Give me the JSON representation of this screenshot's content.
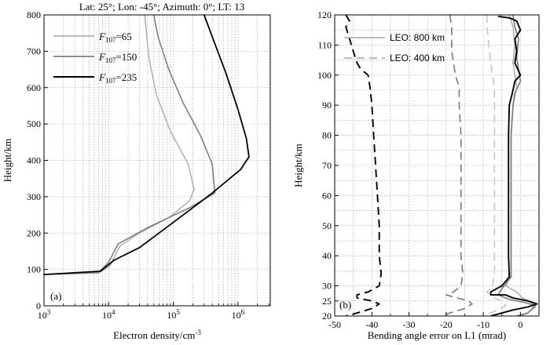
{
  "chart_data": [
    {
      "type": "line",
      "panel": "(a)",
      "title": "Lat: 25°; Lon: -45°; Azimuth: 0°; LT: 13",
      "xlabel": "Electron density/cm",
      "xlabel_sup": "-3",
      "ylabel": "Height/km",
      "xscale": "log",
      "xlim_exp": [
        3,
        6.5
      ],
      "x_tick_bases": [
        "10",
        "10",
        "10",
        "10"
      ],
      "x_tick_exps": [
        "3",
        "4",
        "5",
        "6"
      ],
      "ylim": [
        0,
        800
      ],
      "y_ticks": [
        "0",
        "100",
        "200",
        "300",
        "400",
        "500",
        "600",
        "700",
        "800"
      ],
      "grid": true,
      "legend_position": "top-left",
      "series": [
        {
          "name_main": "F",
          "name_sub": "107",
          "name_value": "=65",
          "color": "#b3b3b3",
          "points": [
            [
              1000,
              86
            ],
            [
              7000,
              90
            ],
            [
              10500,
              110
            ],
            [
              15000,
              165
            ],
            [
              30000,
              200
            ],
            [
              90000,
              245
            ],
            [
              180000,
              290
            ],
            [
              210000,
              320
            ],
            [
              170000,
              390
            ],
            [
              90000,
              480
            ],
            [
              55000,
              580
            ],
            [
              42000,
              680
            ],
            [
              36000,
              800
            ]
          ]
        },
        {
          "name_main": "F",
          "name_sub": "107",
          "name_value": "=150",
          "color": "#7f7f7f",
          "points": [
            [
              1000,
              86
            ],
            [
              7000,
              92
            ],
            [
              10000,
              120
            ],
            [
              14000,
              170
            ],
            [
              40000,
              215
            ],
            [
              180000,
              270
            ],
            [
              440000,
              310
            ],
            [
              400000,
              390
            ],
            [
              260000,
              470
            ],
            [
              140000,
              560
            ],
            [
              85000,
              650
            ],
            [
              58000,
              740
            ],
            [
              50000,
              800
            ]
          ]
        },
        {
          "name_main": "F",
          "name_sub": "107",
          "name_value": "=235",
          "color": "#000000",
          "points": [
            [
              1000,
              86
            ],
            [
              7500,
              95
            ],
            [
              12000,
              125
            ],
            [
              30000,
              160
            ],
            [
              120000,
              240
            ],
            [
              400000,
              310
            ],
            [
              1100000,
              375
            ],
            [
              1480000,
              410
            ],
            [
              1350000,
              460
            ],
            [
              1000000,
              540
            ],
            [
              650000,
              640
            ],
            [
              400000,
              740
            ],
            [
              300000,
              800
            ]
          ]
        }
      ]
    },
    {
      "type": "line",
      "panel": "(b)",
      "xlabel": "Bending angle error on L1 (mrad)",
      "ylabel": "Height/km",
      "xlim": [
        -50,
        5
      ],
      "x_ticks": [
        "-50",
        "-40",
        "-30",
        "-20",
        "-10",
        "0"
      ],
      "ylim": [
        20,
        120
      ],
      "y_ticks": [
        "20",
        "25",
        "30",
        "40",
        "50",
        "60",
        "70",
        "80",
        "90",
        "100",
        "110",
        "120"
      ],
      "y_tick_values": [
        20,
        25,
        30,
        40,
        50,
        60,
        70,
        80,
        90,
        100,
        110,
        120
      ],
      "grid": true,
      "legend_position": "top-right",
      "legend": [
        "LEO: 800 km",
        "LEO: 400 km"
      ],
      "series": [
        {
          "name": "LEO: 800 km, F107=65",
          "style": "solid",
          "color": "#b3b3b3",
          "points": [
            [
              -3,
              120
            ],
            [
              -2,
              116
            ],
            [
              -1.5,
              110
            ],
            [
              -2,
              104
            ],
            [
              -1.5,
              100
            ],
            [
              -1,
              96
            ],
            [
              -2,
              90
            ],
            [
              -2.5,
              80
            ],
            [
              -2.5,
              70
            ],
            [
              -2.5,
              60
            ],
            [
              -2.5,
              50
            ],
            [
              -2.5,
              40
            ],
            [
              -2.5,
              34
            ],
            [
              -4,
              30
            ],
            [
              -1,
              28
            ],
            [
              0.5,
              26
            ],
            [
              3,
              24.5
            ],
            [
              4,
              23
            ],
            [
              2,
              21
            ],
            [
              0,
              20
            ]
          ]
        },
        {
          "name": "LEO: 800 km, F107=150",
          "style": "solid",
          "color": "#7f7f7f",
          "points": [
            [
              -2,
              120
            ],
            [
              -1.5,
              116
            ],
            [
              -0.5,
              112
            ],
            [
              -1,
              106
            ],
            [
              -0.5,
              102
            ],
            [
              0,
              98
            ],
            [
              -1.5,
              94
            ],
            [
              -2,
              90
            ],
            [
              -2.5,
              80
            ],
            [
              -2.5,
              70
            ],
            [
              -2.5,
              60
            ],
            [
              -2.5,
              50
            ],
            [
              -2.5,
              40
            ],
            [
              -2.5,
              33
            ],
            [
              -5,
              29
            ],
            [
              -6,
              27
            ],
            [
              -3,
              25.5
            ],
            [
              1,
              24.5
            ],
            [
              4,
              23.5
            ],
            [
              2,
              21
            ],
            [
              -1,
              20
            ]
          ]
        },
        {
          "name": "LEO: 800 km, F107=235",
          "style": "solid",
          "color": "#000000",
          "points": [
            [
              -6,
              119.5
            ],
            [
              -3,
              119
            ],
            [
              -1,
              118
            ],
            [
              0,
              115
            ],
            [
              -1.5,
              112
            ],
            [
              -1,
              108
            ],
            [
              -1.5,
              104
            ],
            [
              0,
              100
            ],
            [
              -1.5,
              98
            ],
            [
              -2,
              95
            ],
            [
              -3,
              90
            ],
            [
              -3.2,
              80
            ],
            [
              -3.2,
              70
            ],
            [
              -3.2,
              60
            ],
            [
              -3.2,
              50
            ],
            [
              -3.2,
              40
            ],
            [
              -3,
              33
            ],
            [
              -5,
              30
            ],
            [
              -8,
              28
            ],
            [
              -8,
              27
            ],
            [
              -4,
              27
            ],
            [
              -2,
              26
            ],
            [
              2,
              25
            ],
            [
              4.5,
              24
            ],
            [
              2,
              23
            ],
            [
              -2,
              22
            ],
            [
              -5,
              21
            ],
            [
              -8,
              20
            ]
          ]
        },
        {
          "name": "LEO: 400 km, F107=65",
          "style": "dashed",
          "color": "#c8c8c8",
          "points": [
            [
              -9,
              120
            ],
            [
              -9,
              116
            ],
            [
              -8.5,
              110
            ],
            [
              -8,
              104
            ],
            [
              -7.5,
              100
            ],
            [
              -7,
              96
            ],
            [
              -7,
              90
            ],
            [
              -7,
              80
            ],
            [
              -7,
              70
            ],
            [
              -7,
              60
            ],
            [
              -7,
              50
            ],
            [
              -7,
              40
            ],
            [
              -7,
              34
            ],
            [
              -7.5,
              30
            ],
            [
              -9,
              28
            ],
            [
              -7,
              26
            ],
            [
              -5,
              25
            ],
            [
              -4,
              23.5
            ],
            [
              -6,
              22
            ],
            [
              -9,
              20.5
            ]
          ]
        },
        {
          "name": "LEO: 400 km, F107=150",
          "style": "dashed",
          "color": "#7f7f7f",
          "points": [
            [
              -19,
              120
            ],
            [
              -18.5,
              116
            ],
            [
              -18.5,
              112
            ],
            [
              -18.5,
              108
            ],
            [
              -18,
              104
            ],
            [
              -17.5,
              100
            ],
            [
              -16.5,
              96
            ],
            [
              -16.5,
              90
            ],
            [
              -16,
              80
            ],
            [
              -16,
              70
            ],
            [
              -16,
              60
            ],
            [
              -16,
              50
            ],
            [
              -16,
              40
            ],
            [
              -15.5,
              34
            ],
            [
              -16,
              30
            ],
            [
              -18,
              28
            ],
            [
              -20,
              27
            ],
            [
              -17,
              26
            ],
            [
              -14,
              25
            ],
            [
              -13,
              24
            ],
            [
              -15,
              22.5
            ],
            [
              -19,
              21
            ],
            [
              -21,
              20
            ]
          ]
        },
        {
          "name": "LEO: 400 km, F107=235",
          "style": "dashed",
          "color": "#000000",
          "points": [
            [
              -47,
              120
            ],
            [
              -46,
              118
            ],
            [
              -47,
              116
            ],
            [
              -46,
              112
            ],
            [
              -45,
              108
            ],
            [
              -44,
              104
            ],
            [
              -43,
              102
            ],
            [
              -41,
              100
            ],
            [
              -40.5,
              96
            ],
            [
              -40,
              90
            ],
            [
              -39.5,
              80
            ],
            [
              -39,
              70
            ],
            [
              -38.5,
              60
            ],
            [
              -38,
              50
            ],
            [
              -38,
              40
            ],
            [
              -37.5,
              34
            ],
            [
              -38,
              30
            ],
            [
              -41,
              28
            ],
            [
              -44,
              27
            ],
            [
              -44,
              26
            ],
            [
              -40,
              25
            ],
            [
              -38,
              24
            ],
            [
              -40,
              22.5
            ],
            [
              -44,
              21
            ],
            [
              -47,
              20
            ]
          ]
        }
      ]
    }
  ]
}
